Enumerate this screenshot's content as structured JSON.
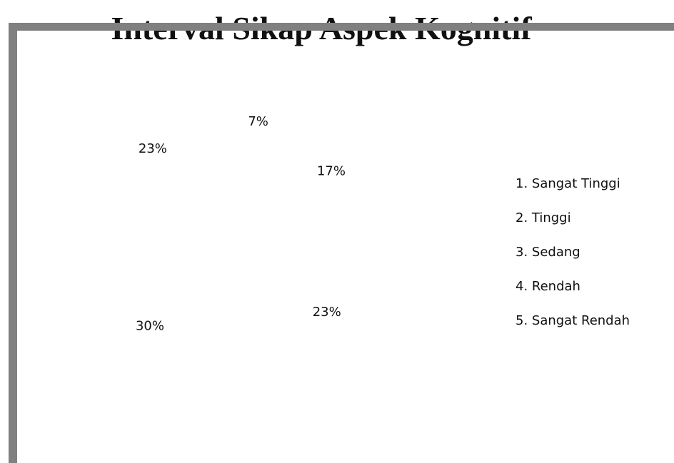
{
  "chart_data": {
    "type": "pie",
    "title": "Interval Sikap Aspek Kognitif",
    "categories": [
      "1. Sangat Tinggi",
      "2. Tinggi",
      "3. Sedang",
      "4. Rendah",
      "5. Sangat Rendah"
    ],
    "values": [
      7,
      17,
      23,
      30,
      23
    ],
    "value_labels": [
      "7%",
      "17%",
      "23%",
      "30%",
      "23%"
    ],
    "color": "#ffffff",
    "legend": "right"
  }
}
